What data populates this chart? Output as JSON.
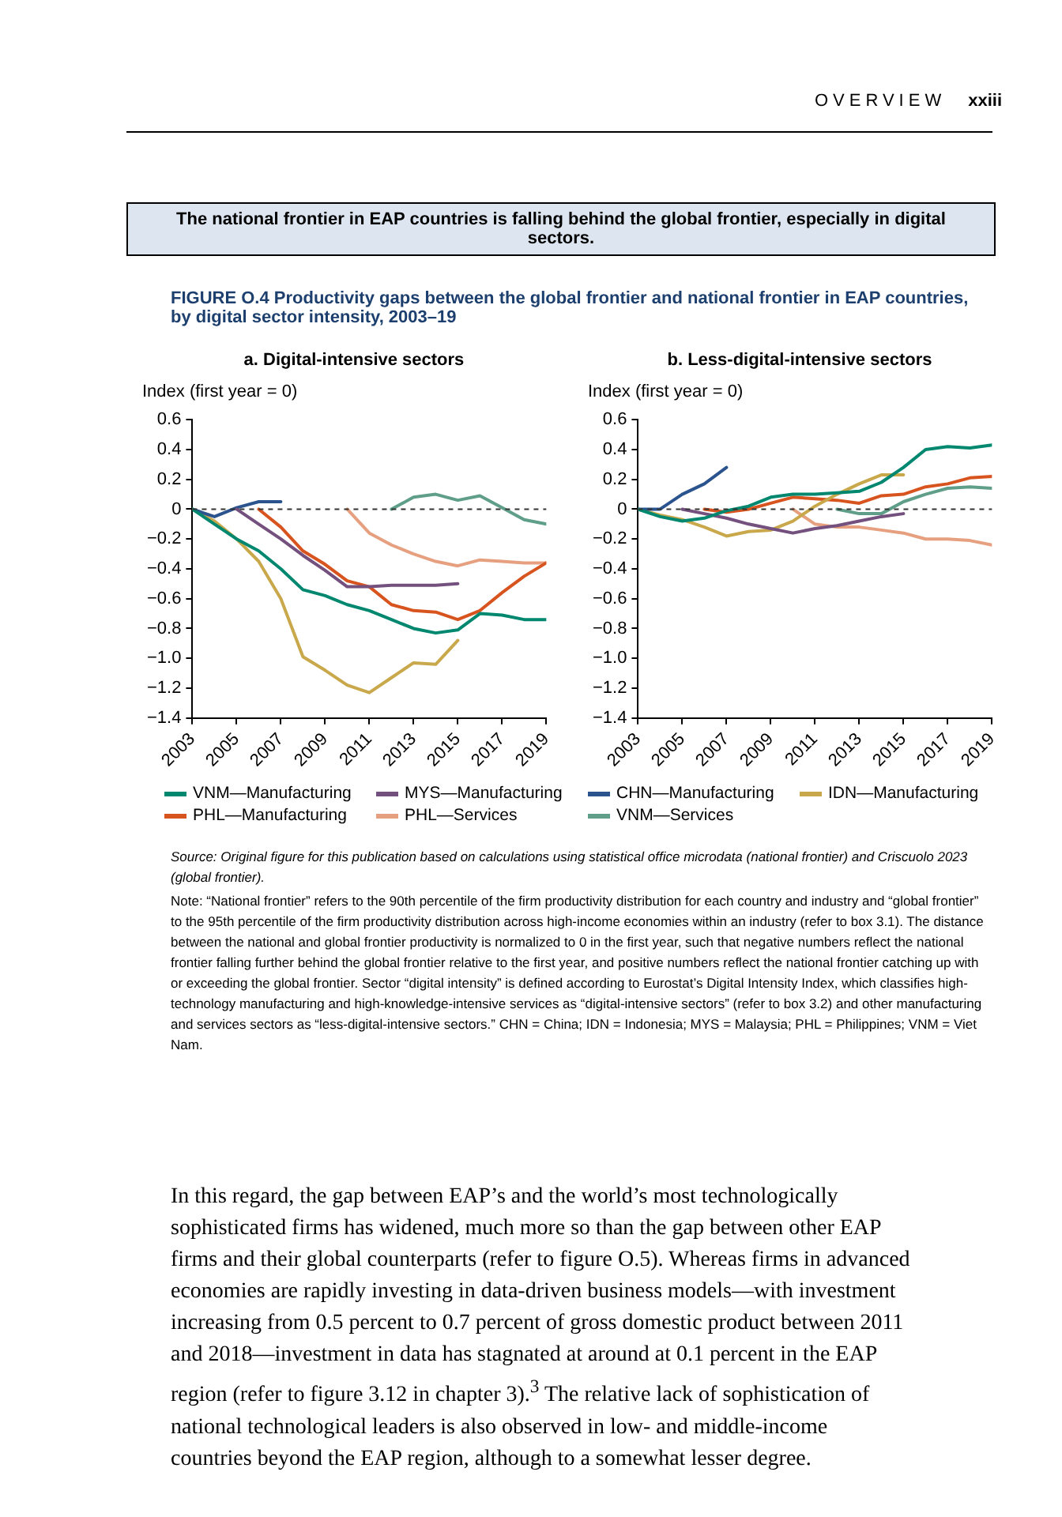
{
  "chart_data": [
    {
      "type": "line",
      "title": "a. Digital-intensive sectors",
      "ylabel": "Index (first year = 0)",
      "annotations": [
        "OVERVIEW",
        "xxiii",
        "The national frontier in EAP countries is falling behind the global frontier, especially in digital sectors.",
        "FIGURE O.4  Productivity gaps between the global frontier and national frontier in EAP countries, by digital sector intensity, 2003–19",
        "Source: Original figure for this publication based on calculations using statistical office microdata (national frontier) and Criscuolo 2023 (global frontier).",
        "Note: “National frontier” refers to the 90th percentile of the firm productivity distribution for each country and industry and “global frontier” to the 95th percentile of the firm productivity distribution across high-income economies within an industry (refer to box 3.1). The distance between the national and global frontier productivity is normalized to 0 in the first year, such that negative numbers reflect the national frontier falling further behind the global frontier relative to the first year, and positive numbers reflect the national frontier catching up with or exceeding the global frontier. Sector “digital intensity” is defined according to Eurostat’s Digital Intensity Index, which classifies high-technology manufacturing and high-knowledge-intensive services as “digital-intensive sectors” (refer to box 3.2) and other manufacturing and services sectors as “less-digital-intensive sectors.” CHN = China; IDN = Indonesia; MYS = Malaysia; PHL = Philippines; VNM = Viet Nam.",
        "In this regard, the gap between EAP’s and the world’s most technologically sophisticated firms has widened, much more so than the gap between other EAP firms and their global counterparts (refer to figure O.5). Whereas firms in advanced economies are rapidly investing in data-driven business models—with investment increasing from 0.5 percent to 0.7 percent of gross domestic product between 2011 and 2018—investment in data has stagnated at around at 0.1 percent in the EAP region (refer to figure 3.12 in chapter 3).$^{3}$ The relative lack of sophistication of national technological leaders is also observed in low- and middle-income countries beyond the EAP region, although to a somewhat lesser degree."
      ],
      "x": [
        2003,
        2004,
        2005,
        2006,
        2007,
        2008,
        2009,
        2010,
        2011,
        2012,
        2013,
        2014,
        2015,
        2016,
        2017,
        2018,
        2019
      ],
      "xlim": [
        2003,
        2019
      ],
      "xticks": [
        2003,
        2005,
        2007,
        2009,
        2011,
        2013,
        2015,
        2017,
        2019
      ],
      "ylim": [
        -1.4,
        0.6
      ],
      "yticks": [
        {
          "value": -1.4,
          "label": "−1.4"
        },
        {
          "value": -1.2,
          "label": "−1.2"
        },
        {
          "value": -1,
          "label": "−1.0"
        },
        {
          "value": -0.8,
          "label": "−0.8"
        },
        {
          "value": -0.6,
          "label": "−0.6"
        },
        {
          "value": -0.4,
          "label": "−0.4"
        },
        {
          "value": -0.2,
          "label": "−0.2"
        },
        0,
        0.2,
        0.4,
        0.6
      ],
      "grid": false,
      "legend": "bottom",
      "ref_lines": [
        {
          "axis": "y",
          "value": 0,
          "color": "#333333",
          "line_style": "dashed"
        }
      ],
      "series": [
        {
          "name": "VNM—Manufacturing",
          "color": "#00876f",
          "values": [
            0,
            -0.1,
            -0.2,
            -0.28,
            -0.4,
            -0.54,
            -0.58,
            -0.64,
            -0.68,
            -0.74,
            -0.8,
            -0.83,
            -0.81,
            -0.7,
            -0.71,
            -0.74,
            -0.74
          ]
        },
        {
          "name": "MYS—Manufacturing",
          "color": "#74507e",
          "values": [
            null,
            null,
            0,
            -0.1,
            -0.2,
            -0.31,
            -0.41,
            -0.52,
            -0.52,
            -0.51,
            -0.51,
            -0.51,
            -0.5,
            null,
            null,
            null,
            null
          ]
        },
        {
          "name": "CHN—Manufacturing",
          "color": "#2b548f",
          "values": [
            0,
            -0.05,
            0.01,
            0.05,
            0.05,
            null,
            null,
            null,
            null,
            null,
            null,
            null,
            null,
            null,
            null,
            null,
            null
          ]
        },
        {
          "name": "IDN—Manufacturing",
          "color": "#c9a84c",
          "values": [
            0,
            -0.08,
            -0.2,
            -0.35,
            -0.6,
            -0.99,
            -1.08,
            -1.18,
            -1.23,
            -1.13,
            -1.03,
            -1.04,
            -0.88,
            null,
            null,
            null,
            null
          ]
        },
        {
          "name": "PHL—Manufacturing",
          "color": "#d8541f",
          "values": [
            null,
            null,
            null,
            0,
            -0.12,
            -0.28,
            -0.37,
            -0.48,
            -0.52,
            -0.64,
            -0.68,
            -0.69,
            -0.74,
            -0.68,
            -0.56,
            -0.45,
            -0.36
          ]
        },
        {
          "name": "PHL—Services",
          "color": "#e6a07f",
          "values": [
            null,
            null,
            null,
            null,
            null,
            null,
            null,
            0,
            -0.16,
            -0.24,
            -0.3,
            -0.35,
            -0.38,
            -0.34,
            -0.35,
            -0.36,
            -0.36
          ]
        },
        {
          "name": "VNM—Services",
          "color": "#5f9e89",
          "values": [
            null,
            null,
            null,
            null,
            null,
            null,
            null,
            null,
            null,
            0,
            0.08,
            0.1,
            0.06,
            0.09,
            0.01,
            -0.07,
            -0.1
          ]
        }
      ]
    },
    {
      "type": "line",
      "title": "b. Less-digital-intensive sectors",
      "ylabel": "Index (first year = 0)",
      "x": [
        2003,
        2004,
        2005,
        2006,
        2007,
        2008,
        2009,
        2010,
        2011,
        2012,
        2013,
        2014,
        2015,
        2016,
        2017,
        2018,
        2019
      ],
      "xlim": [
        2003,
        2019
      ],
      "xticks": [
        2003,
        2005,
        2007,
        2009,
        2011,
        2013,
        2015,
        2017,
        2019
      ],
      "ylim": [
        -1.4,
        0.6
      ],
      "yticks": [
        {
          "value": -1.4,
          "label": "−1.4"
        },
        {
          "value": -1.2,
          "label": "−1.2"
        },
        {
          "value": -1,
          "label": "−1.0"
        },
        {
          "value": -0.8,
          "label": "−0.8"
        },
        {
          "value": -0.6,
          "label": "−0.6"
        },
        {
          "value": -0.4,
          "label": "−0.4"
        },
        {
          "value": -0.2,
          "label": "−0.2"
        },
        0,
        0.2,
        0.4,
        0.6
      ],
      "grid": false,
      "ref_lines": [
        {
          "axis": "y",
          "value": 0,
          "color": "#333333",
          "line_style": "dashed"
        }
      ],
      "series": [
        {
          "color": "#00876f",
          "values": [
            0,
            -0.05,
            -0.08,
            -0.06,
            -0.01,
            0.02,
            0.08,
            0.1,
            0.1,
            0.11,
            0.12,
            0.18,
            0.28,
            0.4,
            0.42,
            0.41,
            0.43
          ]
        },
        {
          "color": "#74507e",
          "values": [
            null,
            null,
            0,
            -0.03,
            -0.06,
            -0.1,
            -0.13,
            -0.16,
            -0.13,
            -0.11,
            -0.08,
            -0.05,
            -0.03,
            null,
            null,
            null,
            null
          ]
        },
        {
          "color": "#2b548f",
          "values": [
            0,
            0,
            0.1,
            0.17,
            0.28,
            null,
            null,
            null,
            null,
            null,
            null,
            null,
            null,
            null,
            null,
            null,
            null
          ]
        },
        {
          "color": "#c9a84c",
          "values": [
            0,
            -0.04,
            -0.07,
            -0.12,
            -0.18,
            -0.15,
            -0.14,
            -0.08,
            0.02,
            0.1,
            0.17,
            0.23,
            0.23,
            null,
            null,
            null,
            null
          ]
        },
        {
          "color": "#d8541f",
          "values": [
            null,
            null,
            null,
            0,
            -0.02,
            0,
            0.04,
            0.08,
            0.07,
            0.06,
            0.04,
            0.09,
            0.1,
            0.15,
            0.17,
            0.21,
            0.22
          ]
        },
        {
          "color": "#e6a07f",
          "values": [
            null,
            null,
            null,
            null,
            null,
            null,
            null,
            0,
            -0.1,
            -0.12,
            -0.12,
            -0.14,
            -0.16,
            -0.2,
            -0.2,
            -0.21,
            -0.24
          ]
        },
        {
          "color": "#5f9e89",
          "values": [
            null,
            null,
            null,
            null,
            null,
            null,
            null,
            null,
            null,
            0,
            -0.03,
            -0.03,
            0.05,
            0.1,
            0.14,
            0.15,
            0.14
          ]
        }
      ]
    }
  ]
}
